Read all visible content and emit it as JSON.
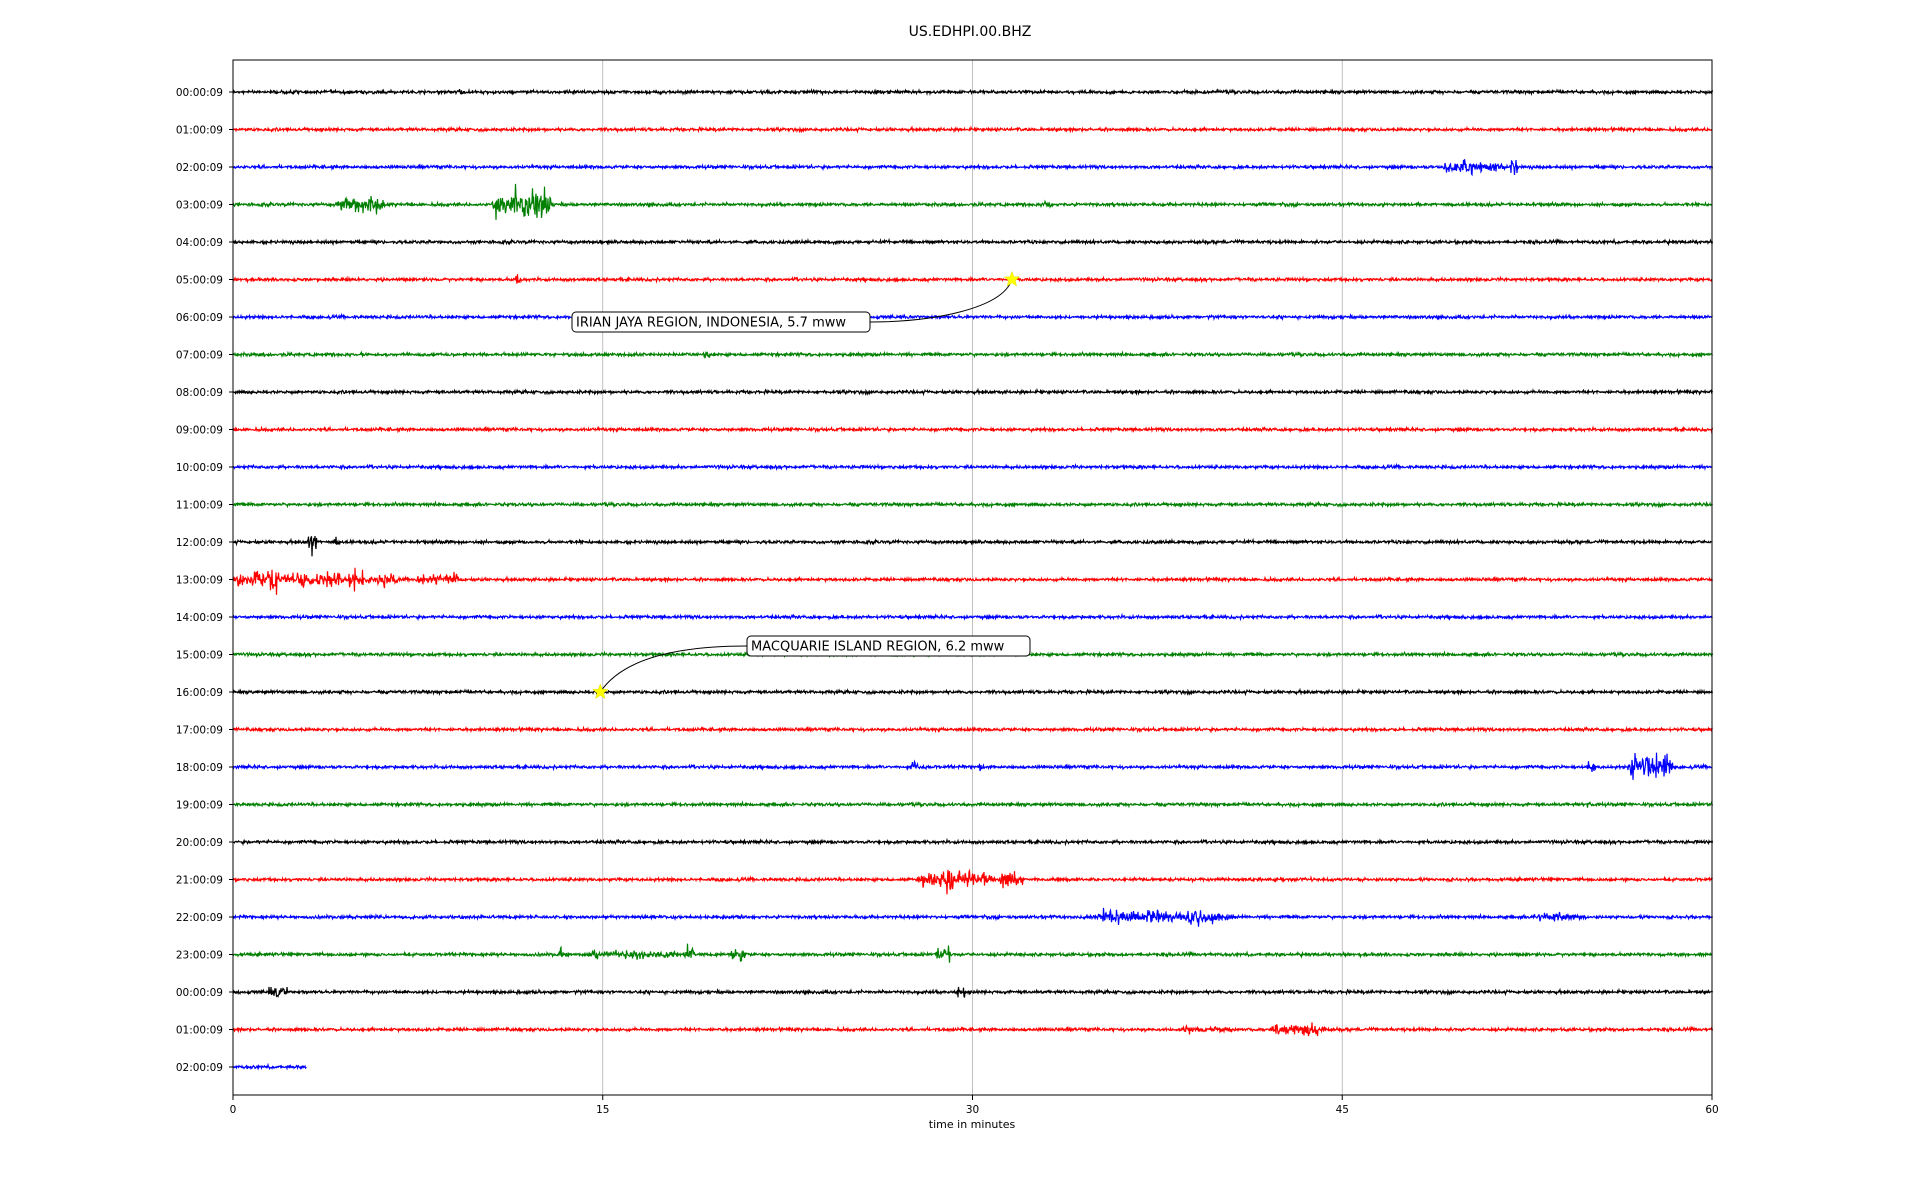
{
  "chart_data": {
    "type": "line",
    "title": "US.EDHPI.00.BHZ",
    "xlabel": "time in minutes",
    "ylabel": "",
    "xlim": [
      0,
      60
    ],
    "x_ticks": [
      "0",
      "15",
      "30",
      "45",
      "60"
    ],
    "x_tick_values": [
      0,
      15,
      30,
      45,
      60
    ],
    "grid_x": true,
    "colors": [
      "#000000",
      "#ff0000",
      "#0000ff",
      "#008000"
    ],
    "rows": [
      {
        "label": "00:00:09",
        "end_min": 60,
        "bursts": [
          {
            "t": 9.2,
            "amp": 8,
            "dur": 0.3
          }
        ]
      },
      {
        "label": "01:00:09",
        "end_min": 60,
        "bursts": []
      },
      {
        "label": "02:00:09",
        "end_min": 60,
        "bursts": [
          {
            "t": 50.3,
            "amp": 14,
            "dur": 2.0
          },
          {
            "t": 52.0,
            "amp": 18,
            "dur": 0.3
          }
        ]
      },
      {
        "label": "03:00:09",
        "end_min": 60,
        "bursts": [
          {
            "t": 5.2,
            "amp": 14,
            "dur": 1.6
          },
          {
            "t": 11.0,
            "amp": 18,
            "dur": 0.8
          },
          {
            "t": 12.0,
            "amp": 28,
            "dur": 1.4
          },
          {
            "t": 33.0,
            "amp": 7,
            "dur": 0.3
          }
        ]
      },
      {
        "label": "04:00:09",
        "end_min": 60,
        "bursts": []
      },
      {
        "label": "05:00:09",
        "end_min": 60,
        "bursts": [
          {
            "t": 11.6,
            "amp": 12,
            "dur": 0.2
          }
        ]
      },
      {
        "label": "06:00:09",
        "end_min": 60,
        "bursts": [
          {
            "t": 20.0,
            "amp": 6,
            "dur": 0.2
          }
        ]
      },
      {
        "label": "07:00:09",
        "end_min": 60,
        "bursts": [
          {
            "t": 19.2,
            "amp": 10,
            "dur": 0.2
          }
        ]
      },
      {
        "label": "08:00:09",
        "end_min": 60,
        "bursts": []
      },
      {
        "label": "09:00:09",
        "end_min": 60,
        "bursts": []
      },
      {
        "label": "10:00:09",
        "end_min": 60,
        "bursts": []
      },
      {
        "label": "11:00:09",
        "end_min": 60,
        "bursts": []
      },
      {
        "label": "12:00:09",
        "end_min": 60,
        "bursts": [
          {
            "t": 3.2,
            "amp": 30,
            "dur": 0.3
          },
          {
            "t": 4.2,
            "amp": 12,
            "dur": 0.2
          }
        ]
      },
      {
        "label": "13:00:09",
        "end_min": 60,
        "bursts": [
          {
            "t": 0.3,
            "amp": 12,
            "dur": 1.8
          },
          {
            "t": 1.6,
            "amp": 24,
            "dur": 0.4
          },
          {
            "t": 2.5,
            "amp": 14,
            "dur": 3.2
          },
          {
            "t": 5.0,
            "amp": 26,
            "dur": 0.5
          },
          {
            "t": 6.0,
            "amp": 10,
            "dur": 1.2
          },
          {
            "t": 8.3,
            "amp": 10,
            "dur": 1.5
          }
        ]
      },
      {
        "label": "14:00:09",
        "end_min": 60,
        "bursts": []
      },
      {
        "label": "15:00:09",
        "end_min": 60,
        "bursts": []
      },
      {
        "label": "16:00:09",
        "end_min": 60,
        "bursts": []
      },
      {
        "label": "17:00:09",
        "end_min": 60,
        "bursts": []
      },
      {
        "label": "18:00:09",
        "end_min": 60,
        "bursts": [
          {
            "t": 27.8,
            "amp": 8,
            "dur": 0.6
          },
          {
            "t": 30.3,
            "amp": 6,
            "dur": 0.3
          },
          {
            "t": 55.1,
            "amp": 10,
            "dur": 0.3
          },
          {
            "t": 57.5,
            "amp": 30,
            "dur": 1.4
          }
        ]
      },
      {
        "label": "19:00:09",
        "end_min": 60,
        "bursts": [
          {
            "t": 55.0,
            "amp": 6,
            "dur": 0.3
          }
        ]
      },
      {
        "label": "20:00:09",
        "end_min": 60,
        "bursts": []
      },
      {
        "label": "21:00:09",
        "end_min": 60,
        "bursts": [
          {
            "t": 28.3,
            "amp": 14,
            "dur": 1.0
          },
          {
            "t": 29.1,
            "amp": 32,
            "dur": 0.3
          },
          {
            "t": 30.0,
            "amp": 16,
            "dur": 1.2
          },
          {
            "t": 31.6,
            "amp": 12,
            "dur": 0.8
          }
        ]
      },
      {
        "label": "22:00:09",
        "end_min": 60,
        "bursts": [
          {
            "t": 35.2,
            "amp": 8,
            "dur": 1.0
          },
          {
            "t": 37.5,
            "amp": 12,
            "dur": 4.5
          },
          {
            "t": 39.0,
            "amp": 18,
            "dur": 0.5
          },
          {
            "t": 53.8,
            "amp": 10,
            "dur": 1.7
          }
        ]
      },
      {
        "label": "23:00:09",
        "end_min": 60,
        "bursts": [
          {
            "t": 13.3,
            "amp": 12,
            "dur": 0.2
          },
          {
            "t": 16.2,
            "amp": 10,
            "dur": 2.8
          },
          {
            "t": 18.5,
            "amp": 16,
            "dur": 0.3
          },
          {
            "t": 20.5,
            "amp": 14,
            "dur": 0.5
          },
          {
            "t": 28.8,
            "amp": 14,
            "dur": 0.5
          }
        ]
      },
      {
        "label": "00:00:09",
        "end_min": 60,
        "bursts": [
          {
            "t": 1.8,
            "amp": 10,
            "dur": 0.7
          },
          {
            "t": 29.5,
            "amp": 14,
            "dur": 0.3
          }
        ]
      },
      {
        "label": "01:00:09",
        "end_min": 60,
        "bursts": [
          {
            "t": 39.5,
            "amp": 6,
            "dur": 2.0
          },
          {
            "t": 43.2,
            "amp": 14,
            "dur": 1.8
          }
        ]
      },
      {
        "label": "02:00:09",
        "end_min": 3.0,
        "bursts": []
      }
    ],
    "events": [
      {
        "label": "IRIAN JAYA REGION, INDONESIA, 5.7 mww",
        "row": 5,
        "t": 31.6
      },
      {
        "label": "MACQUARIE ISLAND REGION, 6.2 mww",
        "row": 16,
        "t": 14.9
      }
    ]
  }
}
